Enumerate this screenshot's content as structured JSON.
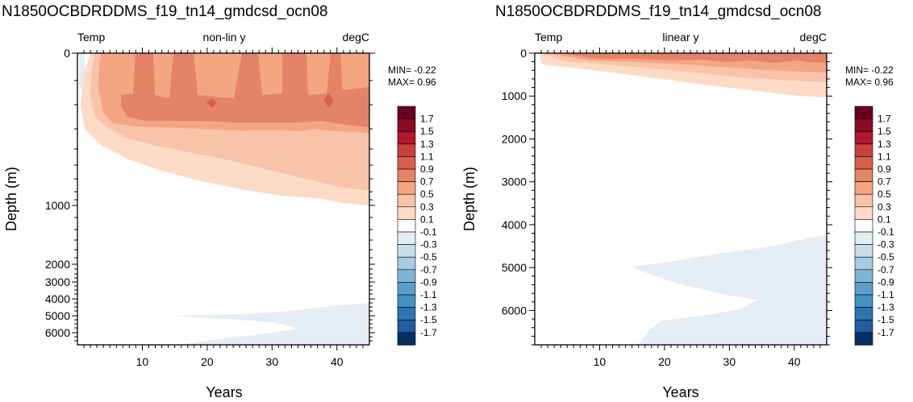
{
  "chart_data": [
    {
      "type": "contour",
      "panel": "left",
      "title": "N1850OCBDRDDMS_f19_tn14_gmdcsd_ocn08",
      "subtitle_left": "Temp",
      "subtitle_center": "non-lin y",
      "subtitle_right": "degC",
      "xlabel": "Years",
      "ylabel": "Depth (m)",
      "xlim": [
        0,
        45
      ],
      "ylim": [
        0,
        6800
      ],
      "x_ticks": [
        10,
        20,
        30,
        40
      ],
      "y_tick_labels": [
        "0",
        "1000",
        "2000",
        "3000",
        "4000",
        "5000",
        "6000"
      ],
      "min_label": "MIN= -0.22",
      "max_label": "MAX=  0.96"
    },
    {
      "type": "contour",
      "panel": "right",
      "title": "N1850OCBDRDDMS_f19_tn14_gmdcsd_ocn08",
      "subtitle_left": "Temp",
      "subtitle_center": "linear y",
      "subtitle_right": "degC",
      "xlabel": "Years",
      "ylabel": "Depth (m)",
      "xlim": [
        0,
        45
      ],
      "ylim": [
        0,
        6800
      ],
      "x_ticks": [
        10,
        20,
        30,
        40
      ],
      "y_ticks": [
        0,
        1000,
        2000,
        3000,
        4000,
        5000,
        6000
      ],
      "y_tick_labels": [
        "0",
        "1000",
        "2000",
        "3000",
        "4000",
        "5000",
        "6000"
      ],
      "min_label": "MIN= -0.22",
      "max_label": "MAX=  0.96"
    }
  ],
  "colorbar": {
    "labels": [
      "1.7",
      "1.5",
      "1.3",
      "1.1",
      "0.9",
      "0.7",
      "0.5",
      "0.3",
      "0.1",
      "-0.1",
      "-0.3",
      "-0.5",
      "-0.7",
      "-0.9",
      "-1.1",
      "-1.3",
      "-1.5",
      "-1.7"
    ],
    "colors": [
      "#67001f",
      "#8b0a26",
      "#b2182b",
      "#c9403e",
      "#d6604d",
      "#e58368",
      "#f4a582",
      "#f8c3a8",
      "#fddbc7",
      "#ffffff",
      "#e3eef5",
      "#c9deec",
      "#a7cce2",
      "#80b5d6",
      "#5d9fcb",
      "#4393c3",
      "#2f74b1",
      "#215d9f",
      "#053061"
    ]
  },
  "colors": {
    "warm_1": "#fddbc7",
    "warm_2": "#f8c3a8",
    "warm_3": "#f4a582",
    "warm_4": "#e58368",
    "warm_5": "#d6604d",
    "cool_1": "#e3eef5"
  }
}
